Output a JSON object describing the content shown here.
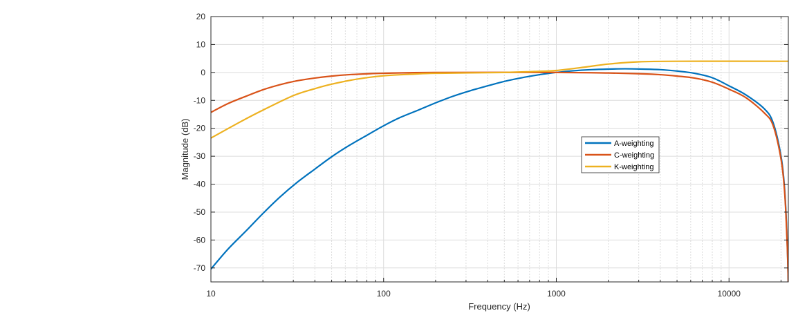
{
  "chart_data": {
    "type": "line",
    "title": "",
    "xlabel": "Frequency (Hz)",
    "ylabel": "Magnitude (dB)",
    "xscale": "log",
    "xlim": [
      10,
      22050
    ],
    "ylim": [
      -75,
      20
    ],
    "grid": true,
    "legend_position": "center-right",
    "x_ticks": [
      10,
      100,
      1000,
      10000
    ],
    "x_tick_labels": [
      "10",
      "100",
      "1000",
      "10000"
    ],
    "y_ticks": [
      20,
      10,
      0,
      -10,
      -20,
      -30,
      -40,
      -50,
      -60,
      -70
    ],
    "y_tick_labels": [
      "20",
      "10",
      "0",
      "-10",
      "-20",
      "-30",
      "-40",
      "-50",
      "-60",
      "-70"
    ],
    "series": [
      {
        "name": "A-weighting",
        "color": "#0072BD",
        "points": [
          [
            10,
            -70.4
          ],
          [
            12.5,
            -63.4
          ],
          [
            16,
            -56.7
          ],
          [
            20,
            -50.5
          ],
          [
            25,
            -44.7
          ],
          [
            31.5,
            -39.4
          ],
          [
            40,
            -34.6
          ],
          [
            50,
            -30.2
          ],
          [
            63,
            -26.2
          ],
          [
            80,
            -22.5
          ],
          [
            100,
            -19.1
          ],
          [
            125,
            -16.1
          ],
          [
            160,
            -13.4
          ],
          [
            200,
            -10.9
          ],
          [
            250,
            -8.6
          ],
          [
            315,
            -6.6
          ],
          [
            400,
            -4.8
          ],
          [
            500,
            -3.2
          ],
          [
            630,
            -1.9
          ],
          [
            800,
            -0.8
          ],
          [
            1000,
            0
          ],
          [
            1250,
            0.6
          ],
          [
            1600,
            1.0
          ],
          [
            2000,
            1.2
          ],
          [
            2500,
            1.3
          ],
          [
            3150,
            1.2
          ],
          [
            4000,
            1.0
          ],
          [
            5000,
            0.5
          ],
          [
            6300,
            -0.3
          ],
          [
            8000,
            -1.9
          ],
          [
            10000,
            -4.8
          ],
          [
            12500,
            -8
          ],
          [
            16000,
            -13
          ],
          [
            18000,
            -18
          ],
          [
            20000,
            -30
          ],
          [
            21000,
            -42
          ],
          [
            21700,
            -60
          ],
          [
            22050,
            -76
          ]
        ]
      },
      {
        "name": "C-weighting",
        "color": "#D95319",
        "points": [
          [
            10,
            -14.3
          ],
          [
            12.5,
            -11.2
          ],
          [
            16,
            -8.5
          ],
          [
            20,
            -6.2
          ],
          [
            25,
            -4.4
          ],
          [
            31.5,
            -3.0
          ],
          [
            40,
            -2.0
          ],
          [
            50,
            -1.3
          ],
          [
            63,
            -0.8
          ],
          [
            80,
            -0.5
          ],
          [
            100,
            -0.3
          ],
          [
            200,
            0
          ],
          [
            1000,
            0
          ],
          [
            2000,
            -0.2
          ],
          [
            3150,
            -0.5
          ],
          [
            4000,
            -0.8
          ],
          [
            5000,
            -1.3
          ],
          [
            6300,
            -2.0
          ],
          [
            8000,
            -3.5
          ],
          [
            10000,
            -6
          ],
          [
            12500,
            -9
          ],
          [
            16000,
            -14.5
          ],
          [
            18000,
            -19
          ],
          [
            20000,
            -31
          ],
          [
            21000,
            -43
          ],
          [
            21700,
            -61
          ],
          [
            22050,
            -76
          ]
        ]
      },
      {
        "name": "K-weighting",
        "color": "#EDB120",
        "points": [
          [
            10,
            -23.5
          ],
          [
            15,
            -17.5
          ],
          [
            20,
            -13.5
          ],
          [
            30,
            -8.3
          ],
          [
            40,
            -5.8
          ],
          [
            50,
            -4.2
          ],
          [
            70,
            -2.4
          ],
          [
            100,
            -1.2
          ],
          [
            150,
            -0.6
          ],
          [
            200,
            -0.3
          ],
          [
            500,
            0
          ],
          [
            800,
            0.4
          ],
          [
            1000,
            0.7
          ],
          [
            1500,
            2.0
          ],
          [
            2000,
            3.0
          ],
          [
            3000,
            3.8
          ],
          [
            5000,
            4.0
          ],
          [
            22050,
            4.0
          ]
        ]
      }
    ]
  }
}
